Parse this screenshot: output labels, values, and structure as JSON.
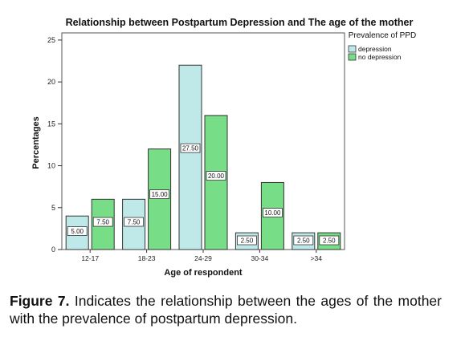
{
  "chart_data": {
    "type": "bar",
    "title": "Relationship between Postpartum Depression and The age of the mother",
    "xlabel": "Age of respondent",
    "ylabel": "Percentages",
    "ylim": [
      0,
      25
    ],
    "yticks": [
      0,
      5,
      10,
      15,
      20,
      25
    ],
    "categories": [
      "12-17",
      "18-23",
      "24-29",
      "30-34",
      ">34"
    ],
    "legend": {
      "title": "Prevalence of PPD",
      "position": "top-right"
    },
    "series": [
      {
        "name": "depression",
        "color": "#bfe9e9",
        "values": [
          4,
          6,
          22,
          2,
          2
        ],
        "labels": [
          "5.00",
          "7.50",
          "27.50",
          "2.50",
          "2.50"
        ]
      },
      {
        "name": "no depression",
        "color": "#77dd86",
        "values": [
          6,
          12,
          16,
          8,
          2
        ],
        "labels": [
          "7.50",
          "15.00",
          "20.00",
          "10.00",
          "2.50"
        ]
      }
    ],
    "grid": false
  },
  "caption": {
    "label": "Figure 7.",
    "text": "Indicates the relationship between the ages of the mother with the prevalence of postpartum depression."
  }
}
